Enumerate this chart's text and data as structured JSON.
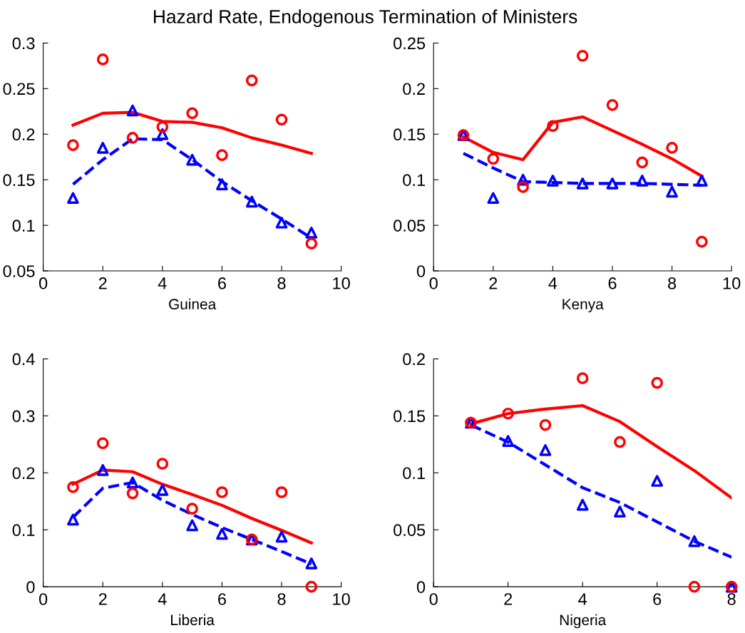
{
  "chart_data": [
    {
      "type": "line",
      "title": "Hazard Rate, Endogenous Termination of Ministers",
      "xlabel": "Guinea",
      "x": [
        1,
        2,
        3,
        4,
        5,
        6,
        7,
        8,
        9
      ],
      "xlim": [
        0,
        10
      ],
      "xticks": [
        0,
        2,
        4,
        6,
        8,
        10
      ],
      "ylim": [
        0.05,
        0.3
      ],
      "yticks": [
        0.05,
        0.1,
        0.15,
        0.2,
        0.25,
        0.3
      ],
      "grid": false,
      "legend": false,
      "series": [
        {
          "type": "scatter",
          "marker": "circle",
          "color": "#ff0000",
          "values": [
            0.188,
            0.282,
            0.196,
            0.208,
            0.223,
            0.177,
            0.259,
            0.216,
            0.08
          ]
        },
        {
          "marker": "none",
          "line_style": "solid",
          "color": "#ff0000",
          "values": [
            0.21,
            0.223,
            0.224,
            0.214,
            0.213,
            0.207,
            0.196,
            0.188,
            0.179
          ]
        },
        {
          "type": "scatter",
          "marker": "triangle",
          "color": "#0000ff",
          "values": [
            0.13,
            0.185,
            0.226,
            0.2,
            0.172,
            0.145,
            0.126,
            0.103,
            0.092
          ]
        },
        {
          "marker": "none",
          "line_style": "dashed",
          "color": "#0000ff",
          "values": [
            0.145,
            0.172,
            0.195,
            0.194,
            0.172,
            0.148,
            0.127,
            0.107,
            0.086
          ]
        }
      ]
    },
    {
      "type": "line",
      "xlabel": "Kenya",
      "x": [
        1,
        2,
        3,
        4,
        5,
        6,
        7,
        8,
        9
      ],
      "xlim": [
        0,
        10
      ],
      "xticks": [
        0,
        2,
        4,
        6,
        8,
        10
      ],
      "ylim": [
        0,
        0.25
      ],
      "yticks": [
        0,
        0.05,
        0.1,
        0.15,
        0.2,
        0.25
      ],
      "grid": false,
      "legend": false,
      "series": [
        {
          "type": "scatter",
          "marker": "circle",
          "color": "#ff0000",
          "values": [
            0.149,
            0.123,
            0.092,
            0.159,
            0.236,
            0.182,
            0.119,
            0.135,
            0.032
          ]
        },
        {
          "marker": "none",
          "line_style": "solid",
          "color": "#ff0000",
          "values": [
            0.147,
            0.13,
            0.122,
            0.163,
            0.169,
            0.154,
            0.139,
            0.123,
            0.104
          ]
        },
        {
          "type": "scatter",
          "marker": "triangle",
          "color": "#0000ff",
          "values": [
            0.149,
            0.08,
            0.1,
            0.099,
            0.096,
            0.096,
            0.099,
            0.087,
            0.099
          ]
        },
        {
          "marker": "none",
          "line_style": "dashed",
          "color": "#0000ff",
          "values": [
            0.129,
            0.113,
            0.098,
            0.097,
            0.096,
            0.096,
            0.096,
            0.095,
            0.094
          ]
        }
      ]
    },
    {
      "type": "line",
      "xlabel": "Liberia",
      "x": [
        1,
        2,
        3,
        4,
        5,
        6,
        7,
        8,
        9
      ],
      "xlim": [
        0,
        10
      ],
      "xticks": [
        0,
        2,
        4,
        6,
        8,
        10
      ],
      "ylim": [
        0,
        0.4
      ],
      "yticks": [
        0,
        0.1,
        0.2,
        0.3,
        0.4
      ],
      "grid": false,
      "legend": false,
      "series": [
        {
          "type": "scatter",
          "marker": "circle",
          "color": "#ff0000",
          "values": [
            0.175,
            0.252,
            0.164,
            0.216,
            0.137,
            0.166,
            0.083,
            0.166,
            0.0
          ]
        },
        {
          "marker": "none",
          "line_style": "solid",
          "color": "#ff0000",
          "values": [
            0.18,
            0.205,
            0.202,
            0.18,
            0.162,
            0.143,
            0.12,
            0.099,
            0.077
          ]
        },
        {
          "type": "scatter",
          "marker": "triangle",
          "color": "#0000ff",
          "values": [
            0.118,
            0.205,
            0.183,
            0.17,
            0.108,
            0.093,
            0.083,
            0.088,
            0.041
          ]
        },
        {
          "marker": "none",
          "line_style": "dashed",
          "color": "#0000ff",
          "values": [
            0.122,
            0.173,
            0.183,
            0.152,
            0.127,
            0.104,
            0.083,
            0.062,
            0.04
          ]
        }
      ]
    },
    {
      "type": "line",
      "xlabel": "Nigeria",
      "x": [
        1,
        2,
        3,
        4,
        5,
        6,
        7,
        8
      ],
      "xlim": [
        0,
        8
      ],
      "xticks": [
        0,
        2,
        4,
        6,
        8
      ],
      "ylim": [
        0,
        0.2
      ],
      "yticks": [
        0,
        0.05,
        0.1,
        0.15,
        0.2
      ],
      "grid": false,
      "legend": false,
      "series": [
        {
          "type": "scatter",
          "marker": "circle",
          "color": "#ff0000",
          "values": [
            0.144,
            0.152,
            0.142,
            0.183,
            0.127,
            0.179,
            0.0,
            0.0
          ]
        },
        {
          "marker": "none",
          "line_style": "solid",
          "color": "#ff0000",
          "values": [
            0.143,
            0.152,
            0.156,
            0.159,
            0.145,
            0.123,
            0.102,
            0.078
          ]
        },
        {
          "type": "scatter",
          "marker": "triangle",
          "color": "#0000ff",
          "values": [
            0.144,
            0.128,
            0.12,
            0.072,
            0.066,
            0.093,
            0.04,
            0.0
          ]
        },
        {
          "marker": "none",
          "line_style": "dashed",
          "color": "#0000ff",
          "values": [
            0.142,
            0.127,
            0.107,
            0.087,
            0.074,
            0.057,
            0.04,
            0.026
          ]
        }
      ]
    }
  ]
}
